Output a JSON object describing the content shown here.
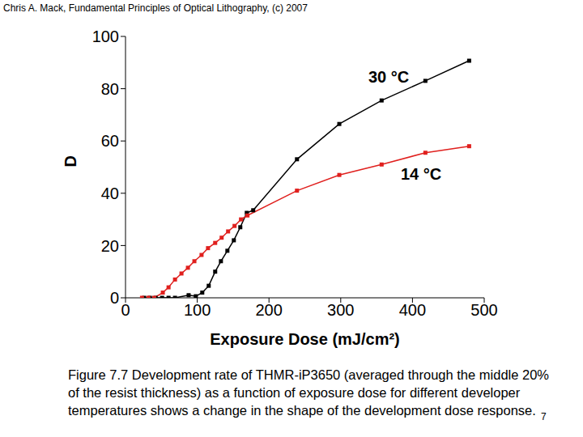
{
  "header": "Chris A. Mack, Fundamental Principles of Optical Lithography, (c) 2007",
  "chart_data": {
    "type": "line",
    "x_label": "Exposure Dose (mJ/cm²)",
    "y_label": "D",
    "xlim": [
      0,
      500
    ],
    "xticks": [
      0,
      100,
      200,
      300,
      400,
      500
    ],
    "ylim": [
      0,
      100
    ],
    "yticks": [
      0,
      20,
      40,
      60,
      80,
      100
    ],
    "grid": false,
    "series": [
      {
        "name": "30 °C",
        "color": "#000000",
        "marker": "square",
        "x": [
          26,
          34,
          42,
          51,
          60,
          69,
          88,
          98,
          107,
          116,
          125,
          133,
          142,
          151,
          160,
          169,
          178,
          239,
          298,
          357,
          418,
          479
        ],
        "values": [
          0,
          0,
          0,
          0,
          0,
          0,
          1,
          0.6,
          2,
          4.6,
          10,
          14,
          18,
          22,
          27,
          32.5,
          33.5,
          53,
          66.5,
          75.5,
          83,
          90.7
        ]
      },
      {
        "name": "14 °C",
        "color": "#e0201e",
        "marker": "square",
        "x": [
          23,
          32,
          40,
          52,
          60,
          69,
          78,
          87,
          96,
          106,
          115,
          125,
          134,
          143,
          152,
          161,
          170,
          239,
          298,
          357,
          418,
          479
        ],
        "values": [
          0,
          0,
          0,
          2,
          4,
          7,
          9.3,
          11.5,
          14,
          16.4,
          19,
          21,
          23,
          25.4,
          27.5,
          30,
          31.5,
          41,
          47,
          51,
          55.5,
          58
        ]
      }
    ]
  },
  "caption": "Figure 7.7  Development rate of THMR-iP3650 (averaged through the middle 20% of the resist thickness) as a function of exposure dose for different developer temperatures shows a change in the shape of the development dose response.",
  "page_number": "7"
}
